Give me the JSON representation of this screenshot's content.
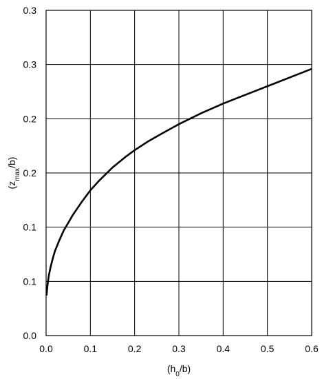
{
  "chart_data": {
    "type": "line",
    "xlabel": {
      "pre": "(h",
      "sub": "0",
      "post": "/b)"
    },
    "ylabel": {
      "pre": "(z",
      "sub": "max",
      "post": "/b)"
    },
    "xlim": [
      0.0,
      0.6
    ],
    "ylim": [
      0.0,
      0.3
    ],
    "grid": true,
    "x_ticks": [
      0.0,
      0.1,
      0.2,
      0.3,
      0.4,
      0.5,
      0.6
    ],
    "x_tick_labels": [
      "0.0",
      "0.1",
      "0.2",
      "0.3",
      "0.4",
      "0.5",
      "0.6"
    ],
    "y_ticks": [
      0.0,
      0.05,
      0.1,
      0.15,
      0.2,
      0.25,
      0.3
    ],
    "y_tick_labels": [
      "0.0",
      "0.1",
      "0.1",
      "0.2",
      "0.2",
      "0.3",
      "0.3"
    ],
    "series": [
      {
        "x": [
          0.001,
          0.003,
          0.006,
          0.01,
          0.015,
          0.02,
          0.03,
          0.04,
          0.05,
          0.06,
          0.07,
          0.08,
          0.1,
          0.12,
          0.15,
          0.18,
          0.2,
          0.23,
          0.26,
          0.3,
          0.35,
          0.4,
          0.45,
          0.5,
          0.55,
          0.6
        ],
        "y": [
          0.037,
          0.046,
          0.055,
          0.063,
          0.071,
          0.078,
          0.088,
          0.097,
          0.104,
          0.111,
          0.117,
          0.123,
          0.134,
          0.143,
          0.155,
          0.165,
          0.171,
          0.179,
          0.186,
          0.195,
          0.205,
          0.214,
          0.222,
          0.23,
          0.238,
          0.246
        ]
      }
    ]
  }
}
